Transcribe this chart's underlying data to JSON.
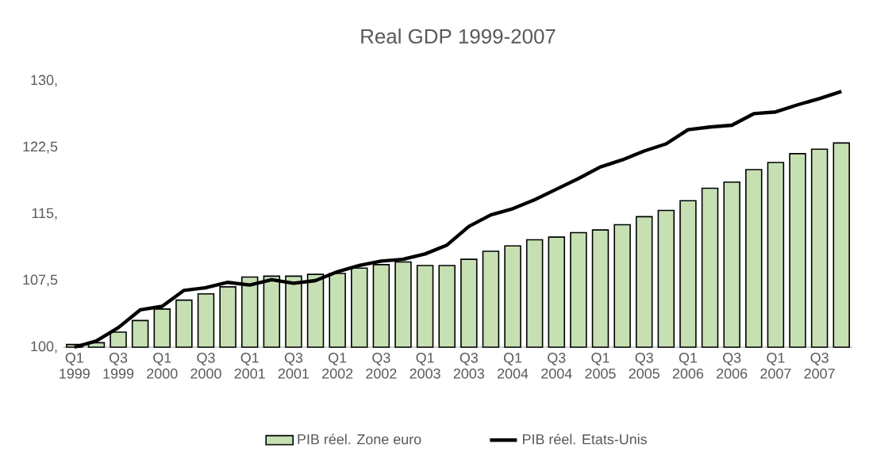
{
  "chart_data": {
    "type": "bar",
    "title": "Real GDP 1999-2007",
    "categories": [
      "Q1 1999",
      null,
      "Q3 1999",
      null,
      "Q1 2000",
      null,
      "Q3 2000",
      null,
      "Q1 2001",
      null,
      "Q3 2001",
      null,
      "Q1 2002",
      null,
      "Q3 2002",
      null,
      "Q1 2003",
      null,
      "Q3 2003",
      null,
      "Q1 2004",
      null,
      "Q3 2004",
      null,
      "Q1 2005",
      null,
      "Q3 2005",
      null,
      "Q1 2006",
      null,
      "Q3 2006",
      null,
      "Q1 2007",
      null,
      "Q3 2007",
      null
    ],
    "series": [
      {
        "name": "PIB réel. Zone euro",
        "color": "#c6e0b4",
        "values": [
          100.3,
          100.5,
          101.7,
          103.0,
          104.3,
          105.3,
          106.0,
          106.8,
          107.9,
          108.0,
          108.0,
          108.2,
          108.3,
          108.9,
          109.3,
          109.6,
          109.2,
          109.2,
          109.9,
          110.8,
          111.4,
          112.1,
          112.4,
          112.9,
          113.2,
          113.8,
          114.7,
          115.4,
          116.5,
          117.9,
          118.6,
          120.0,
          120.8,
          121.8,
          122.3,
          123.0
        ]
      },
      {
        "name": "PIB réel. Etats-Unis",
        "type": "line",
        "color": "#000000",
        "values": [
          100.0,
          100.7,
          102.2,
          104.2,
          104.6,
          106.4,
          106.7,
          107.3,
          107.0,
          107.6,
          107.2,
          107.5,
          108.5,
          109.2,
          109.7,
          109.9,
          110.5,
          111.5,
          113.6,
          114.9,
          115.6,
          116.6,
          117.8,
          119.0,
          120.3,
          121.1,
          122.1,
          122.9,
          124.5,
          124.8,
          125.0,
          126.3,
          126.5,
          127.3,
          128.0,
          128.8
        ]
      }
    ],
    "ylim": [
      100,
      130
    ],
    "yticks": [
      {
        "value": 100,
        "label": "100,"
      },
      {
        "value": 107.5,
        "label": "107,5"
      },
      {
        "value": 115,
        "label": "115,"
      },
      {
        "value": 122.5,
        "label": "122,5"
      },
      {
        "value": 130,
        "label": "130,"
      }
    ],
    "legend": "bottom",
    "grid": false,
    "marker": "none",
    "line_style": "solid"
  }
}
